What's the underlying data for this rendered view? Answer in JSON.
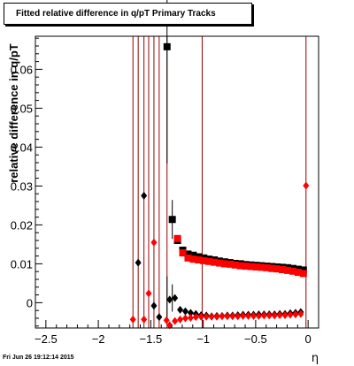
{
  "footer": {
    "timestamp": "Fri Jun 26 19:12:14 2015"
  },
  "chart_data": {
    "type": "scatter",
    "title": "Fitted relative difference in q/pT  Primary Tracks",
    "xlabel": "η",
    "ylabel": "relative difference in q/pT",
    "xlim": [
      -2.6,
      0.1
    ],
    "ylim": [
      -0.0065,
      0.0685
    ],
    "xticks": [
      -2.5,
      -2,
      -1.5,
      -1,
      -0.5,
      0
    ],
    "xtick_labels": [
      "−2.5",
      "−2",
      "−1.5",
      "−1",
      "−0.5",
      "0"
    ],
    "yticks": [
      0,
      0.01,
      0.02,
      0.03,
      0.04,
      0.05,
      0.06
    ],
    "ytick_labels": [
      "0",
      "0.01",
      "0.02",
      "0.03",
      "0.04",
      "0.05",
      "0.06"
    ],
    "grid": false,
    "colors": {
      "black": "#000000",
      "red": "#ff0000",
      "dark_red": "#990000"
    },
    "vertical_lines": [
      {
        "x": -1.67,
        "color": "#990000"
      },
      {
        "x": -1.62,
        "color": "#990000"
      },
      {
        "x": -1.565,
        "color": "#990000"
      },
      {
        "x": -1.52,
        "color": "#990000"
      },
      {
        "x": -1.47,
        "color": "#990000"
      },
      {
        "x": -1.42,
        "color": "#990000"
      },
      {
        "x": -1.345,
        "color": "#990000"
      },
      {
        "x": -1.01,
        "color": "#990000"
      },
      {
        "x": -0.02,
        "color": "#990000"
      }
    ],
    "series": [
      {
        "name": "",
        "color": "#000000",
        "marker": "diamond",
        "points": [
          [
            -1.62,
            0.0103
          ],
          [
            -1.565,
            0.0275
          ],
          [
            -1.47,
            -0.0008
          ],
          [
            -1.42,
            -0.0037
          ],
          [
            -1.32,
            0.0008
          ],
          [
            -1.27,
            0.0012
          ],
          [
            -1.22,
            -0.0018
          ],
          [
            -1.17,
            -0.0022
          ],
          [
            -1.12,
            -0.0026
          ],
          [
            -1.07,
            -0.0029
          ],
          [
            -1.02,
            -0.0032
          ],
          [
            -0.97,
            -0.0033
          ],
          [
            -0.92,
            -0.0035
          ],
          [
            -0.87,
            -0.0034
          ],
          [
            -0.82,
            -0.0034
          ],
          [
            -0.77,
            -0.0033
          ],
          [
            -0.72,
            -0.0033
          ],
          [
            -0.67,
            -0.0032
          ],
          [
            -0.62,
            -0.0031
          ],
          [
            -0.57,
            -0.0031
          ],
          [
            -0.52,
            -0.0031
          ],
          [
            -0.47,
            -0.003
          ],
          [
            -0.42,
            -0.003
          ],
          [
            -0.37,
            -0.003
          ],
          [
            -0.32,
            -0.003
          ],
          [
            -0.27,
            -0.0029
          ],
          [
            -0.22,
            -0.0029
          ],
          [
            -0.17,
            -0.0027
          ],
          [
            -0.12,
            -0.0026
          ],
          [
            -0.07,
            -0.0024
          ]
        ],
        "error_bars": [
          {
            "x": -1.345,
            "y": 0.0008,
            "err": 0.006
          },
          {
            "x": -1.295,
            "y": 0.0012,
            "err": 0.0035
          }
        ]
      },
      {
        "name": "",
        "color": "#ff0000",
        "marker": "diamond",
        "points": [
          [
            -1.67,
            -0.0043
          ],
          [
            -1.565,
            -0.0043
          ],
          [
            -1.52,
            0.0024
          ],
          [
            -1.47,
            0.0155
          ],
          [
            -1.35,
            -0.0045
          ],
          [
            -1.32,
            -0.0058
          ],
          [
            -1.27,
            -0.0047
          ],
          [
            -1.22,
            -0.0043
          ],
          [
            -1.17,
            -0.004
          ],
          [
            -1.12,
            -0.0039
          ],
          [
            -1.07,
            -0.0037
          ],
          [
            -1.02,
            -0.0036
          ],
          [
            -0.97,
            -0.0036
          ],
          [
            -0.92,
            -0.0036
          ],
          [
            -0.87,
            -0.0036
          ],
          [
            -0.82,
            -0.0035
          ],
          [
            -0.77,
            -0.0035
          ],
          [
            -0.72,
            -0.0035
          ],
          [
            -0.67,
            -0.0035
          ],
          [
            -0.62,
            -0.0034
          ],
          [
            -0.57,
            -0.0034
          ],
          [
            -0.52,
            -0.0034
          ],
          [
            -0.47,
            -0.0034
          ],
          [
            -0.42,
            -0.0033
          ],
          [
            -0.37,
            -0.0033
          ],
          [
            -0.32,
            -0.0033
          ],
          [
            -0.27,
            -0.0032
          ],
          [
            -0.22,
            -0.0032
          ],
          [
            -0.17,
            -0.0031
          ],
          [
            -0.12,
            -0.003
          ],
          [
            -0.07,
            -0.0029
          ],
          [
            -0.02,
            0.0301
          ]
        ]
      },
      {
        "name": "",
        "color": "#000000",
        "marker": "square",
        "points": [
          [
            -1.345,
            0.0658
          ],
          [
            -1.295,
            0.0214
          ],
          [
            -1.245,
            0.016
          ],
          [
            -1.195,
            0.0135
          ],
          [
            -1.145,
            0.0125
          ],
          [
            -1.095,
            0.0122
          ],
          [
            -1.045,
            0.0118
          ],
          [
            -0.995,
            0.0115
          ],
          [
            -0.945,
            0.0112
          ],
          [
            -0.895,
            0.011
          ],
          [
            -0.845,
            0.0107
          ],
          [
            -0.795,
            0.0105
          ],
          [
            -0.745,
            0.0103
          ],
          [
            -0.695,
            0.0101
          ],
          [
            -0.645,
            0.01
          ],
          [
            -0.595,
            0.0098
          ],
          [
            -0.545,
            0.0097
          ],
          [
            -0.495,
            0.0096
          ],
          [
            -0.445,
            0.0095
          ],
          [
            -0.395,
            0.0094
          ],
          [
            -0.345,
            0.0093
          ],
          [
            -0.295,
            0.0092
          ],
          [
            -0.245,
            0.0091
          ],
          [
            -0.195,
            0.009
          ],
          [
            -0.145,
            0.0088
          ],
          [
            -0.095,
            0.0086
          ],
          [
            -0.045,
            0.0084
          ]
        ],
        "error_bars": [
          {
            "x": -1.345,
            "y": 0.0658,
            "err": 0.03
          },
          {
            "x": -1.295,
            "y": 0.0214,
            "err": 0.005
          }
        ]
      },
      {
        "name": "",
        "color": "#ff0000",
        "marker": "square",
        "points": [
          [
            -1.245,
            0.0165
          ],
          [
            -1.195,
            0.0128
          ],
          [
            -1.145,
            0.0115
          ],
          [
            -1.095,
            0.0112
          ],
          [
            -1.045,
            0.011
          ],
          [
            -0.995,
            0.0108
          ],
          [
            -0.945,
            0.0106
          ],
          [
            -0.895,
            0.0104
          ],
          [
            -0.845,
            0.0102
          ],
          [
            -0.795,
            0.01
          ],
          [
            -0.745,
            0.0099
          ],
          [
            -0.695,
            0.0097
          ],
          [
            -0.645,
            0.0095
          ],
          [
            -0.595,
            0.0094
          ],
          [
            -0.545,
            0.0093
          ],
          [
            -0.495,
            0.0092
          ],
          [
            -0.445,
            0.0091
          ],
          [
            -0.395,
            0.009
          ],
          [
            -0.345,
            0.0088
          ],
          [
            -0.295,
            0.0087
          ],
          [
            -0.245,
            0.0085
          ],
          [
            -0.195,
            0.0083
          ],
          [
            -0.145,
            0.0081
          ],
          [
            -0.095,
            0.0078
          ],
          [
            -0.045,
            0.0075
          ]
        ]
      }
    ]
  }
}
